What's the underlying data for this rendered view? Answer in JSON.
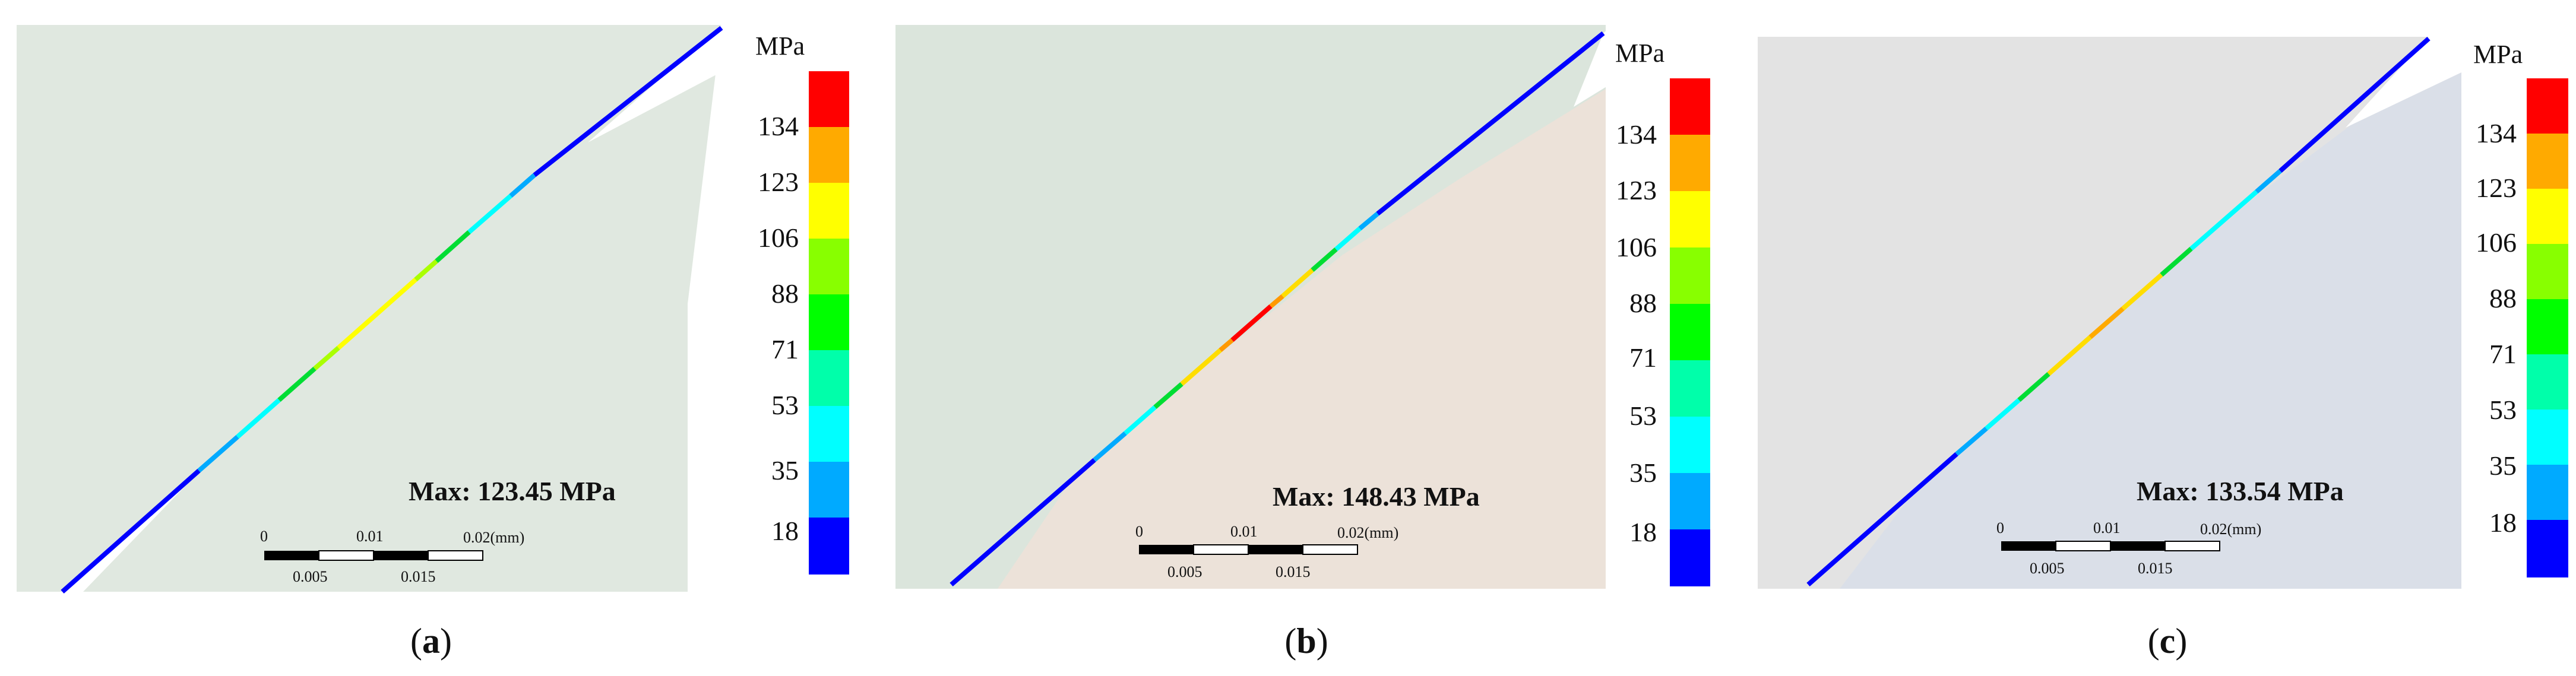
{
  "figure": {
    "panels": [
      {
        "id": "a",
        "caption_letter": "a",
        "max_label": "Max: 123.45 MPa",
        "scale_bar": {
          "top_labels": [
            "0",
            "0.01",
            "0.02(mm)"
          ],
          "bottom_labels": [
            "0.005",
            "0.015"
          ]
        },
        "colors": {
          "background": "#e0e8e0",
          "lower_body": "#e0e8e0"
        },
        "colorbar": {
          "unit": "MPa",
          "ticks": [
            "134",
            "123",
            "106",
            "88",
            "71",
            "53",
            "35",
            "18"
          ],
          "colors": [
            "#0000ff",
            "#00aaff",
            "#00ffff",
            "#00ffaa",
            "#00ff00",
            "#88ff00",
            "#ffff00",
            "#ffaa00",
            "#ff0000"
          ]
        }
      },
      {
        "id": "b",
        "caption_letter": "b",
        "max_label": "Max: 148.43 MPa",
        "scale_bar": {
          "top_labels": [
            "0",
            "0.01",
            "0.02(mm)"
          ],
          "bottom_labels": [
            "0.005",
            "0.015"
          ]
        },
        "colors": {
          "background": "#dbe5dc",
          "lower_body": "#ece2d9"
        },
        "colorbar": {
          "unit": "MPa",
          "ticks": [
            "134",
            "123",
            "106",
            "88",
            "71",
            "53",
            "35",
            "18"
          ],
          "colors": [
            "#0000ff",
            "#00aaff",
            "#00ffff",
            "#00ffaa",
            "#00ff00",
            "#88ff00",
            "#ffff00",
            "#ffaa00",
            "#ff0000"
          ]
        }
      },
      {
        "id": "c",
        "caption_letter": "c",
        "max_label": "Max: 133.54 MPa",
        "scale_bar": {
          "top_labels": [
            "0",
            "0.01",
            "0.02(mm)"
          ],
          "bottom_labels": [
            "0.005",
            "0.015"
          ]
        },
        "colors": {
          "background": "#e3e3e3",
          "lower_body": "#dadfe8"
        },
        "colorbar": {
          "unit": "MPa",
          "ticks": [
            "134",
            "123",
            "106",
            "88",
            "71",
            "53",
            "35",
            "18"
          ],
          "colors": [
            "#0000ff",
            "#00aaff",
            "#00ffff",
            "#00ffaa",
            "#00ff00",
            "#88ff00",
            "#ffff00",
            "#ffaa00",
            "#ff0000"
          ]
        }
      }
    ]
  }
}
